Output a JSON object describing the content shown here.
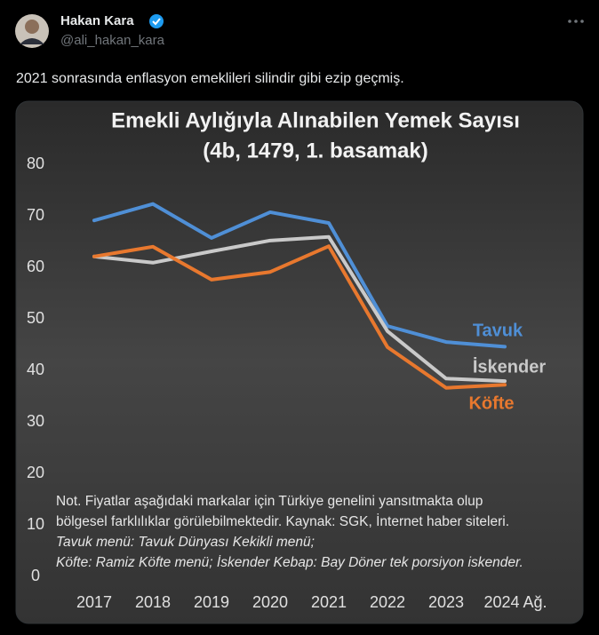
{
  "tweet": {
    "name": "Hakan Kara",
    "handle": "@ali_hakan_kara",
    "text": "2021 sonrasında enflasyon emeklileri silindir gibi ezip geçmiş."
  },
  "chart_data": {
    "type": "line",
    "title": "Emekli Aylığıyla Alınabilen Yemek Sayısı",
    "subtitle": "(4b, 1479, 1. basamak)",
    "categories": [
      "2017",
      "2018",
      "2019",
      "2020",
      "2021",
      "2022",
      "2023",
      "2024 Ağ."
    ],
    "series": [
      {
        "name": "Tavuk",
        "color": "#4f8fd6",
        "values": [
          69.1,
          72.3,
          65.7,
          70.7,
          68.6,
          48.6,
          45.5,
          44.6
        ]
      },
      {
        "name": "İskender",
        "color": "#c9c9c9",
        "values": [
          62.1,
          60.9,
          63.1,
          65.2,
          65.9,
          47.6,
          38.4,
          37.9
        ]
      },
      {
        "name": "Köfte",
        "color": "#e8782e",
        "values": [
          62.1,
          64.0,
          57.6,
          59.1,
          64.1,
          44.5,
          36.6,
          37.2
        ]
      }
    ],
    "ylim": [
      0,
      80
    ],
    "yticks": [
      0,
      10,
      20,
      30,
      40,
      50,
      60,
      70,
      80
    ],
    "grid": false,
    "notes": [
      "Not. Fiyatlar aşağıdaki markalar için Türkiye genelini yansıtmakta olup",
      "bölgesel farklılıklar görülebilmektedir. Kaynak: SGK, İnternet haber siteleri.",
      "Tavuk menü: Tavuk Dünyası Kekikli menü;",
      "Köfte: Ramiz Köfte menü; İskender Kebap: Bay Döner tek porsiyon iskender."
    ]
  }
}
